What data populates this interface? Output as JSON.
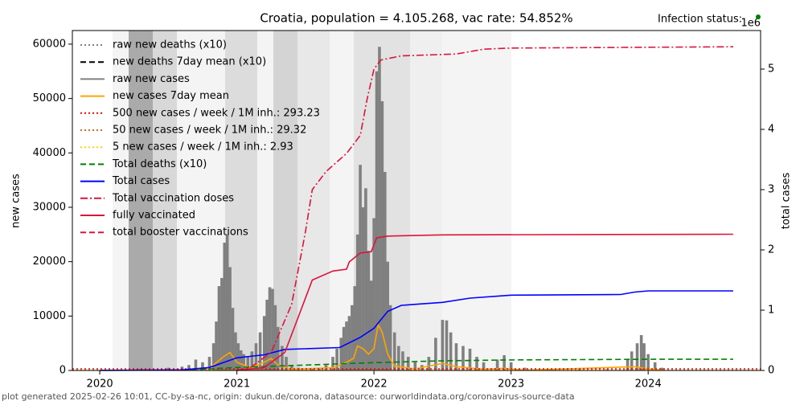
{
  "chart_data": {
    "type": "line",
    "title": "Croatia, population = 4.105.268, vac rate: 54.852%",
    "status_label": "Infection status:",
    "status_color": "#008000",
    "footer": "plot generated 2025-02-26 10:01, CC-by-sa-nc, origin: dukun.de/corona, datasource: ourworldindata.org/coronavirus-source-data",
    "y_label": "new cases",
    "y2_label": "total cases",
    "y2_offset": "1e6",
    "legend": "upper left",
    "xlim": [
      2019.8,
      2024.82
    ],
    "xticks": [
      2020,
      2021,
      2022,
      2023,
      2024
    ],
    "ylim": [
      0,
      62500
    ],
    "yticks": [
      0,
      10000,
      20000,
      30000,
      40000,
      50000,
      60000
    ],
    "y2lim": [
      0,
      5.64
    ],
    "y2ticks": [
      0,
      1,
      2,
      3,
      4,
      5
    ],
    "series": [
      {
        "name": "raw new deaths (x10)",
        "color": "#808080",
        "kind": "line",
        "dash": "dotted",
        "x": [],
        "values": []
      },
      {
        "name": "new deaths 7day mean (x10)",
        "color": "#000000",
        "kind": "line",
        "dash": "dashed",
        "x": [],
        "values": []
      },
      {
        "name": "raw new cases",
        "color": "#808080",
        "kind": "bar",
        "x": [
          2020.2,
          2020.3,
          2020.5,
          2020.6,
          2020.65,
          2020.7,
          2020.75,
          2020.8,
          2020.83,
          2020.85,
          2020.87,
          2020.89,
          2020.91,
          2020.93,
          2020.95,
          2020.97,
          2020.99,
          2021.01,
          2021.03,
          2021.05,
          2021.08,
          2021.11,
          2021.14,
          2021.17,
          2021.2,
          2021.22,
          2021.24,
          2021.26,
          2021.28,
          2021.3,
          2021.33,
          2021.36,
          2021.4,
          2021.45,
          2021.55,
          2021.6,
          2021.65,
          2021.7,
          2021.73,
          2021.76,
          2021.78,
          2021.8,
          2021.82,
          2021.84,
          2021.86,
          2021.88,
          2021.9,
          2021.92,
          2021.94,
          2021.96,
          2021.98,
          2022.0,
          2022.02,
          2022.04,
          2022.06,
          2022.08,
          2022.1,
          2022.12,
          2022.15,
          2022.18,
          2022.21,
          2022.25,
          2022.3,
          2022.35,
          2022.4,
          2022.45,
          2022.5,
          2022.53,
          2022.56,
          2022.6,
          2022.65,
          2022.7,
          2022.75,
          2022.8,
          2022.9,
          2022.95,
          2023.0,
          2023.1,
          2023.3,
          2023.5,
          2023.7,
          2023.85,
          2023.88,
          2023.92,
          2023.95,
          2023.97,
          2024.0,
          2024.05,
          2024.1
        ],
        "values": [
          100,
          300,
          500,
          700,
          1000,
          2000,
          1500,
          2500,
          5000,
          9000,
          15500,
          17000,
          23500,
          25000,
          19000,
          11500,
          7000,
          5000,
          3700,
          3000,
          2500,
          3500,
          5000,
          7000,
          10000,
          13000,
          15300,
          15000,
          12000,
          8000,
          4500,
          2500,
          1000,
          500,
          300,
          500,
          1000,
          2500,
          4000,
          6000,
          8000,
          9000,
          10000,
          12000,
          15500,
          25000,
          37800,
          30000,
          33500,
          22000,
          16500,
          28000,
          55000,
          59500,
          49500,
          36500,
          20000,
          12000,
          7000,
          4500,
          3500,
          2500,
          1500,
          1000,
          2500,
          6000,
          9300,
          9200,
          7000,
          5000,
          4500,
          4000,
          2500,
          1500,
          2000,
          2800,
          1500,
          500,
          300,
          200,
          200,
          2000,
          3500,
          5000,
          6500,
          5000,
          3000,
          1500,
          500
        ]
      },
      {
        "name": "new cases 7day mean",
        "color": "#ffa500",
        "kind": "line",
        "dash": "solid",
        "x": [
          2020.6,
          2020.8,
          2020.9,
          2020.95,
          2021.0,
          2021.1,
          2021.2,
          2021.25,
          2021.3,
          2021.4,
          2021.7,
          2021.8,
          2021.85,
          2021.88,
          2021.92,
          2021.96,
          2022.0,
          2022.03,
          2022.06,
          2022.1,
          2022.15,
          2022.3,
          2022.5,
          2022.6,
          2022.8,
          2022.95,
          2023.1,
          2023.9,
          2024.0,
          2024.1
        ],
        "values": [
          50,
          400,
          2500,
          3300,
          1500,
          500,
          1500,
          2200,
          1000,
          200,
          500,
          1500,
          2200,
          4500,
          4000,
          3000,
          4000,
          8400,
          7000,
          3000,
          800,
          300,
          1300,
          700,
          200,
          400,
          50,
          700,
          300,
          50
        ]
      },
      {
        "name": "500 new cases / week / 1M inh.: 293.23",
        "color": "#ff0000",
        "kind": "hline",
        "dash": "dotted",
        "level": 293.23
      },
      {
        "name": "50 new cases / week / 1M inh.: 29.32",
        "color": "#d2691e",
        "kind": "hline",
        "dash": "dotted",
        "level": 29.32
      },
      {
        "name": "5 new cases / week / 1M inh.: 2.93",
        "color": "#ffd700",
        "kind": "hline",
        "dash": "dotted",
        "level": 2.93
      },
      {
        "name": "Total deaths (x10)",
        "color": "#008000",
        "kind": "line",
        "dash": "dashed",
        "axis": "y2",
        "x": [
          2020.6,
          2021.0,
          2021.5,
          2022.0,
          2022.5,
          2023.0,
          2024.0,
          2024.62
        ],
        "values": [
          0.005,
          0.05,
          0.09,
          0.13,
          0.16,
          0.175,
          0.185,
          0.185
        ]
      },
      {
        "name": "Total cases",
        "color": "#0000ff",
        "kind": "line",
        "dash": "solid",
        "axis": "y2",
        "x": [
          2020.0,
          2020.6,
          2020.8,
          2021.0,
          2021.2,
          2021.35,
          2021.5,
          2021.75,
          2021.9,
          2022.0,
          2022.1,
          2022.2,
          2022.5,
          2022.7,
          2023.0,
          2023.8,
          2023.9,
          2024.0,
          2024.62
        ],
        "values": [
          0,
          0.01,
          0.05,
          0.21,
          0.26,
          0.35,
          0.36,
          0.38,
          0.55,
          0.7,
          0.98,
          1.08,
          1.13,
          1.2,
          1.25,
          1.26,
          1.3,
          1.32,
          1.32
        ]
      },
      {
        "name": "Total vaccination doses",
        "color": "#dc143c",
        "kind": "line",
        "dash": "dashdot",
        "axis": "y2",
        "x": [
          2021.0,
          2021.1,
          2021.25,
          2021.4,
          2021.5,
          2021.55,
          2021.65,
          2021.8,
          2021.9,
          2021.95,
          2022.0,
          2022.05,
          2022.2,
          2022.6,
          2022.8,
          2023.0,
          2024.62
        ],
        "values": [
          0,
          0.05,
          0.3,
          1.1,
          2.3,
          3.0,
          3.3,
          3.6,
          3.9,
          4.5,
          5.0,
          5.15,
          5.22,
          5.25,
          5.33,
          5.35,
          5.37
        ]
      },
      {
        "name": "fully vaccinated",
        "color": "#dc143c",
        "kind": "line",
        "dash": "solid",
        "axis": "y2",
        "x": [
          2021.0,
          2021.2,
          2021.35,
          2021.45,
          2021.55,
          2021.7,
          2021.8,
          2021.82,
          2021.9,
          2021.98,
          2022.02,
          2022.1,
          2022.5,
          2024.62
        ],
        "values": [
          0,
          0.05,
          0.3,
          0.9,
          1.5,
          1.65,
          1.68,
          1.8,
          1.95,
          1.97,
          2.2,
          2.23,
          2.25,
          2.26
        ]
      },
      {
        "name": "total booster vaccinations",
        "color": "#dc143c",
        "kind": "line",
        "dash": "dashed",
        "axis": "y2",
        "x": [],
        "values": []
      }
    ]
  }
}
